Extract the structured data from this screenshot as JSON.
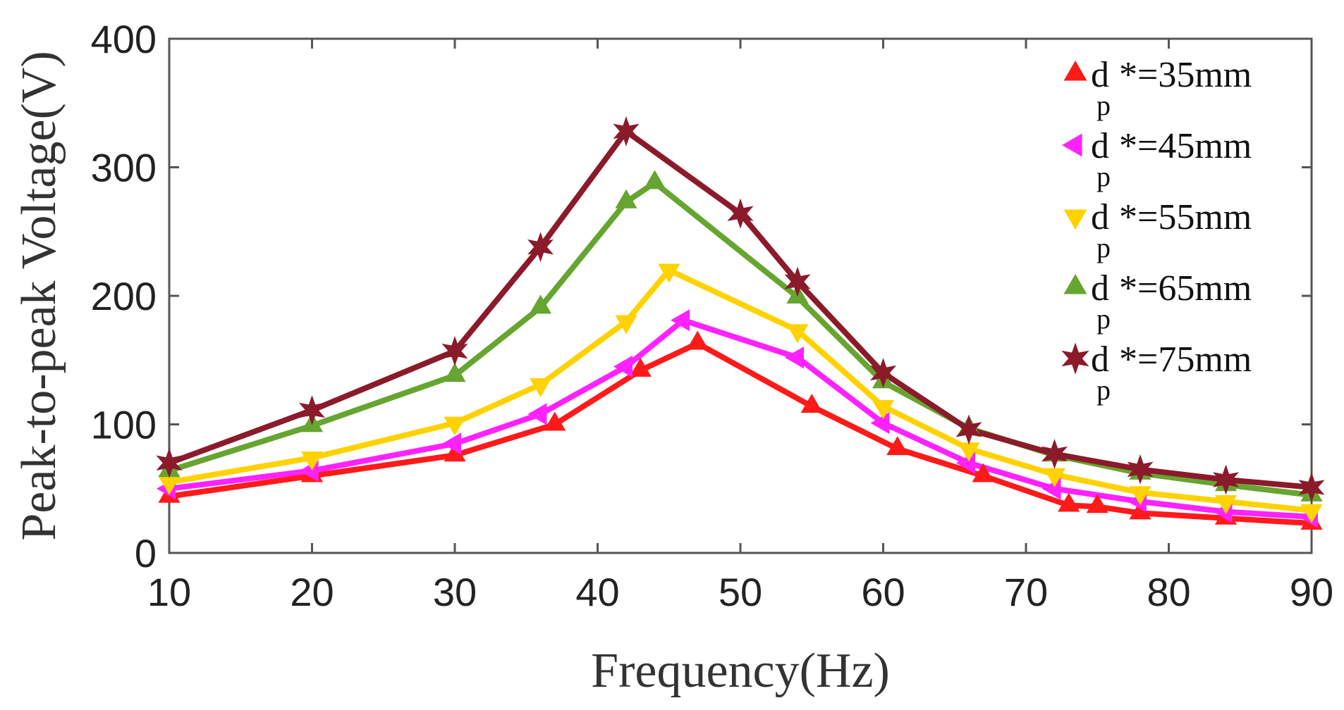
{
  "chart_data": {
    "type": "line",
    "title": "",
    "xlabel": "Frequency(Hz)",
    "ylabel": "Peak-to-peak Voltage(V)",
    "xlim": [
      10,
      90
    ],
    "ylim": [
      0,
      400
    ],
    "xticks": [
      10,
      20,
      30,
      40,
      50,
      60,
      70,
      80,
      90
    ],
    "yticks": [
      0,
      100,
      200,
      300,
      400
    ],
    "grid": false,
    "legend_position": "top-right",
    "series": [
      {
        "name": "dp*=35mm",
        "legend": {
          "base": "d",
          "sub": "p",
          "rest": "*=35mm"
        },
        "color": "#ff1a1a",
        "marker": "triangle-up",
        "x": [
          10,
          20,
          30,
          37,
          43,
          47,
          55,
          61,
          67,
          73,
          75,
          78,
          84,
          90
        ],
        "y": [
          44,
          60,
          76,
          100,
          142,
          163,
          114,
          81,
          60,
          37,
          36,
          31,
          27,
          23
        ]
      },
      {
        "name": "dp*=45mm",
        "legend": {
          "base": "d",
          "sub": "p",
          "rest": "*=45mm"
        },
        "color": "#ff22ff",
        "marker": "triangle-left",
        "x": [
          10,
          20,
          30,
          36,
          42,
          46,
          54,
          60,
          66,
          72,
          78,
          84,
          90
        ],
        "y": [
          50,
          64,
          85,
          108,
          145,
          181,
          152,
          101,
          70,
          50,
          40,
          32,
          28
        ]
      },
      {
        "name": "dp*=55mm",
        "legend": {
          "base": "d",
          "sub": "p",
          "rest": "*=55mm"
        },
        "color": "#ffd200",
        "marker": "triangle-down",
        "x": [
          10,
          20,
          30,
          36,
          42,
          45,
          54,
          60,
          66,
          72,
          78,
          84,
          90
        ],
        "y": [
          55,
          74,
          101,
          131,
          180,
          220,
          173,
          114,
          81,
          61,
          47,
          40,
          33
        ]
      },
      {
        "name": "dp*=65mm",
        "legend": {
          "base": "d",
          "sub": "p",
          "rest": "*=65mm"
        },
        "color": "#66a530",
        "marker": "triangle-right",
        "x": [
          10,
          20,
          30,
          36,
          42,
          44,
          54,
          60,
          66,
          72,
          78,
          84,
          90
        ],
        "y": [
          64,
          99,
          138,
          191,
          273,
          288,
          199,
          133,
          97,
          76,
          62,
          53,
          45
        ]
      },
      {
        "name": "dp*=75mm",
        "legend": {
          "base": "d",
          "sub": "p",
          "rest": "*=75mm"
        },
        "color": "#8b1a2b",
        "marker": "star",
        "x": [
          10,
          20,
          30,
          36,
          42,
          50,
          54,
          60,
          66,
          72,
          78,
          84,
          90
        ],
        "y": [
          70,
          111,
          157,
          238,
          328,
          264,
          211,
          140,
          96,
          77,
          65,
          57,
          51
        ]
      }
    ]
  }
}
